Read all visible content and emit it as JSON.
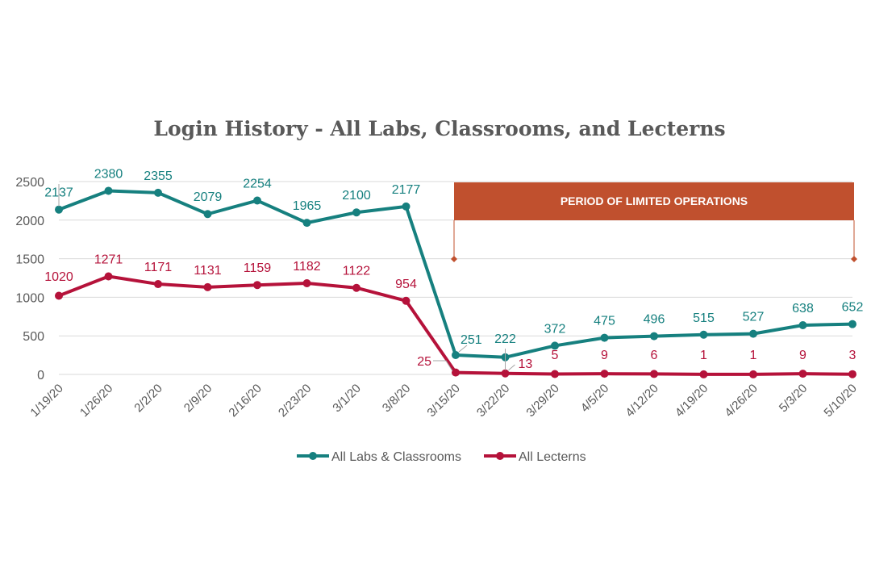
{
  "chart_data": {
    "type": "line",
    "title": "Login History - All Labs, Classrooms, and Lecterns",
    "categories": [
      "1/19/20",
      "1/26/20",
      "2/2/20",
      "2/9/20",
      "2/16/20",
      "2/23/20",
      "3/1/20",
      "3/8/20",
      "3/15/20",
      "3/22/20",
      "3/29/20",
      "4/5/20",
      "4/12/20",
      "4/19/20",
      "4/26/20",
      "5/3/20",
      "5/10/20"
    ],
    "series": [
      {
        "name": "All Labs & Classrooms",
        "color": "#16807F",
        "values": [
          2137,
          2380,
          2355,
          2079,
          2254,
          1965,
          2100,
          2177,
          251,
          222,
          372,
          475,
          496,
          515,
          527,
          638,
          652
        ]
      },
      {
        "name": "All Lecterns",
        "color": "#B5123A",
        "values": [
          1020,
          1271,
          1171,
          1131,
          1159,
          1182,
          1122,
          954,
          25,
          13,
          5,
          9,
          6,
          1,
          1,
          9,
          3
        ]
      }
    ],
    "yticks": [
      0,
      500,
      1000,
      1500,
      2000,
      2500
    ],
    "ylim": [
      0,
      2500
    ],
    "grid": true,
    "legend_position": "bottom",
    "annotation": {
      "text": "PERIOD OF LIMITED OPERATIONS",
      "start": "3/15/20",
      "end": "5/10/20",
      "color": "#C0502E"
    }
  }
}
